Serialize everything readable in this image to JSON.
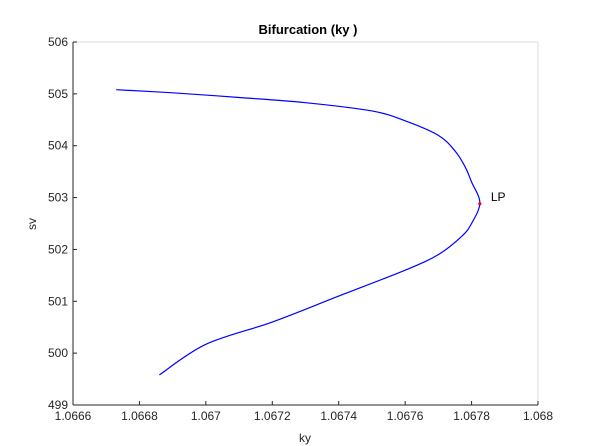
{
  "chart_data": {
    "type": "line",
    "title": "Bifurcation (ky )",
    "xlabel": "ky",
    "ylabel": "sv",
    "xlim": [
      1.0666,
      1.068
    ],
    "ylim": [
      499,
      506
    ],
    "x_ticks": [
      1.0666,
      1.0668,
      1.067,
      1.0672,
      1.0674,
      1.0676,
      1.0678,
      1.068
    ],
    "x_tick_labels": [
      "1.0666",
      "1.0668",
      "1.067",
      "1.0672",
      "1.0674",
      "1.0676",
      "1.0678",
      "1.068"
    ],
    "y_ticks": [
      499,
      500,
      501,
      502,
      503,
      504,
      505,
      506
    ],
    "y_tick_labels": [
      "499",
      "500",
      "501",
      "502",
      "503",
      "504",
      "505",
      "506"
    ],
    "grid": false,
    "series": [
      {
        "color": "#0000ff",
        "points": [
          [
            1.06673,
            505.08
          ],
          [
            1.0669,
            505.02
          ],
          [
            1.0671,
            504.93
          ],
          [
            1.0673,
            504.83
          ],
          [
            1.0675,
            504.67
          ],
          [
            1.0676,
            504.48
          ],
          [
            1.0677,
            504.2
          ],
          [
            1.06775,
            503.9
          ],
          [
            1.06778,
            503.6
          ],
          [
            1.0678,
            503.3
          ],
          [
            1.067825,
            502.9
          ],
          [
            1.0678,
            502.5
          ],
          [
            1.06777,
            502.25
          ],
          [
            1.0677,
            501.9
          ],
          [
            1.0676,
            501.6
          ],
          [
            1.0674,
            501.1
          ],
          [
            1.0672,
            500.6
          ],
          [
            1.067,
            500.17
          ],
          [
            1.06686,
            499.58
          ]
        ]
      }
    ],
    "special_points": [
      {
        "label": "LP",
        "x": 1.067825,
        "y": 502.88,
        "color": "#ff0000"
      }
    ]
  }
}
